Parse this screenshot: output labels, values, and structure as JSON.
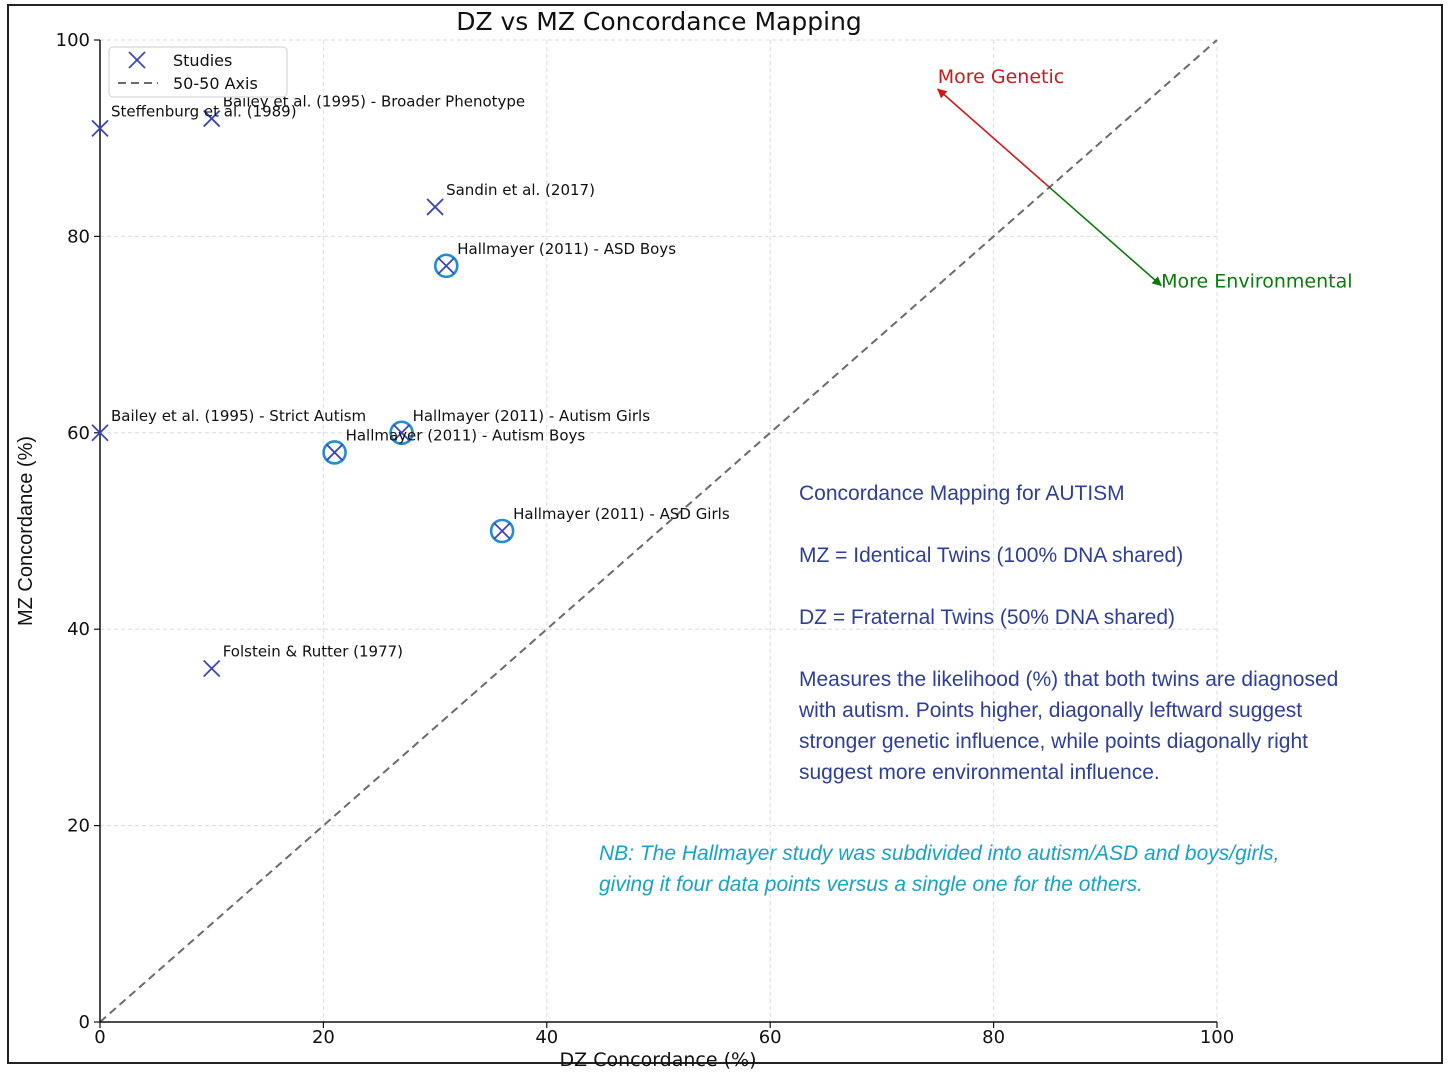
{
  "chart_data": {
    "type": "scatter",
    "title": "DZ vs MZ Concordance Mapping",
    "xlabel": "DZ Concordance (%)",
    "ylabel": "MZ Concordance (%)",
    "xlim": [
      0,
      100
    ],
    "ylim": [
      0,
      100
    ],
    "xticks": [
      "0",
      "20",
      "40",
      "60",
      "80",
      "100"
    ],
    "yticks": [
      "0",
      "20",
      "40",
      "60",
      "80",
      "100"
    ],
    "grid": true,
    "legend": {
      "position": "top-left",
      "entries": [
        "Studies",
        "50-50 Axis"
      ]
    },
    "series": [
      {
        "name": "Studies",
        "marker": "x",
        "color": "#3b47b8",
        "highlight_color": "#1f8fcf",
        "points": [
          {
            "label": "Steffenburg et al. (1989)",
            "x": 0,
            "y": 91,
            "highlight": false
          },
          {
            "label": "Bailey et al. (1995) - Broader Phenotype",
            "x": 10,
            "y": 92,
            "highlight": false
          },
          {
            "label": "Sandin et al. (2017)",
            "x": 30,
            "y": 83,
            "highlight": false
          },
          {
            "label": "Hallmayer (2011) - ASD Boys",
            "x": 31,
            "y": 77,
            "highlight": true
          },
          {
            "label": "Bailey et al. (1995) - Strict Autism",
            "x": 0,
            "y": 60,
            "highlight": false
          },
          {
            "label": "Hallmayer (2011) - Autism Girls",
            "x": 27,
            "y": 60,
            "highlight": true
          },
          {
            "label": "Hallmayer (2011) - Autism Boys",
            "x": 21,
            "y": 58,
            "highlight": true
          },
          {
            "label": "Hallmayer (2011) - ASD Girls",
            "x": 36,
            "y": 50,
            "highlight": true
          },
          {
            "label": "Folstein & Rutter (1977)",
            "x": 10,
            "y": 36,
            "highlight": false
          }
        ]
      },
      {
        "name": "50-50 Axis",
        "style": "dashed",
        "color": "#6b6b6b",
        "x": [
          0,
          100
        ],
        "y": [
          0,
          100
        ]
      }
    ],
    "annotations": [
      {
        "text": "More Genetic",
        "color": "#d01818",
        "arrow_from": [
          85,
          85
        ],
        "arrow_to": [
          75,
          95
        ]
      },
      {
        "text": "More Environmental",
        "color": "#0a7a0a",
        "arrow_from": [
          85,
          85
        ],
        "arrow_to": [
          95,
          75
        ]
      }
    ]
  },
  "info_box": {
    "heading": "Concordance Mapping for AUTISM",
    "line_mz": "MZ = Identical Twins (100% DNA shared)",
    "line_dz": "DZ = Fraternal Twins (50% DNA shared)",
    "description_lines": [
      "Measures the likelihood (%) that both twins are diagnosed",
      "with autism.  Points higher, diagonally leftward suggest",
      "stronger genetic influence, while points diagonally right",
      "suggest more environmental influence."
    ]
  },
  "note_lines": [
    "NB: The Hallmayer study was subdivided into autism/ASD and boys/girls,",
    "giving it four  data points versus a single one for the others."
  ]
}
